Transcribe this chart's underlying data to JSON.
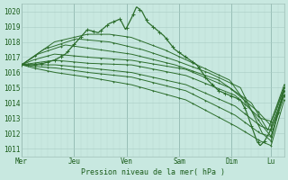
{
  "bg_color": "#c8e8e0",
  "line_color": "#2d6e2d",
  "marker_color": "#2d6e2d",
  "ylabel_text": "Pression niveau de la mer( hPa )",
  "x_labels": [
    "Mer",
    "Jeu",
    "Ven",
    "Sam",
    "Dim",
    "Lu"
  ],
  "ylim": [
    1010.5,
    1020.5
  ],
  "yticks": [
    1011,
    1012,
    1013,
    1014,
    1015,
    1016,
    1017,
    1018,
    1019,
    1020
  ],
  "total_points": 240,
  "day_positions": [
    0,
    48,
    96,
    144,
    192,
    228
  ],
  "lines": [
    {
      "x": [
        0,
        10,
        20,
        30,
        40,
        50,
        60,
        70,
        80,
        90,
        95,
        100,
        105,
        110,
        115,
        120,
        125,
        130,
        140,
        150,
        160,
        170,
        180,
        190,
        200,
        205,
        210,
        215,
        218,
        222,
        226,
        232,
        238,
        240
      ],
      "y": [
        1016.5,
        1016.5,
        1016.6,
        1016.8,
        1017.2,
        1018.0,
        1018.8,
        1018.6,
        1019.2,
        1019.5,
        1018.8,
        1019.5,
        1020.3,
        1020.0,
        1019.3,
        1019.0,
        1018.7,
        1018.4,
        1017.5,
        1017.0,
        1016.5,
        1015.5,
        1014.8,
        1014.5,
        1014.2,
        1013.5,
        1012.5,
        1011.5,
        1011.2,
        1011.5,
        1012.0,
        1013.0,
        1014.2,
        1014.5
      ],
      "main": true
    },
    {
      "x": [
        0,
        30,
        60,
        80,
        100,
        130,
        160,
        190,
        220,
        228,
        240
      ],
      "y": [
        1016.5,
        1018.0,
        1018.5,
        1018.5,
        1018.3,
        1017.5,
        1016.5,
        1015.5,
        1012.5,
        1011.8,
        1014.8
      ]
    },
    {
      "x": [
        0,
        20,
        50,
        80,
        110,
        140,
        170,
        200,
        220,
        228,
        240
      ],
      "y": [
        1016.5,
        1017.5,
        1018.2,
        1018.0,
        1017.5,
        1016.8,
        1016.0,
        1015.0,
        1012.0,
        1011.5,
        1015.0
      ]
    },
    {
      "x": [
        0,
        15,
        40,
        70,
        100,
        140,
        180,
        210,
        225,
        240
      ],
      "y": [
        1016.5,
        1017.2,
        1017.8,
        1017.5,
        1017.2,
        1016.5,
        1015.5,
        1014.0,
        1012.2,
        1015.2
      ]
    },
    {
      "x": [
        0,
        10,
        30,
        60,
        100,
        150,
        190,
        215,
        228,
        240
      ],
      "y": [
        1016.5,
        1016.8,
        1017.2,
        1017.0,
        1016.8,
        1016.2,
        1015.0,
        1013.5,
        1012.5,
        1015.0
      ]
    },
    {
      "x": [
        0,
        10,
        30,
        60,
        100,
        150,
        195,
        218,
        228,
        240
      ],
      "y": [
        1016.5,
        1016.6,
        1016.8,
        1016.6,
        1016.5,
        1015.8,
        1014.5,
        1013.0,
        1012.8,
        1015.0
      ]
    },
    {
      "x": [
        0,
        10,
        30,
        60,
        100,
        150,
        195,
        218,
        228,
        240
      ],
      "y": [
        1016.5,
        1016.5,
        1016.5,
        1016.3,
        1016.0,
        1015.2,
        1013.8,
        1012.5,
        1012.2,
        1014.8
      ]
    },
    {
      "x": [
        0,
        10,
        30,
        60,
        100,
        150,
        195,
        218,
        228,
        240
      ],
      "y": [
        1016.5,
        1016.4,
        1016.3,
        1016.0,
        1015.7,
        1014.8,
        1013.2,
        1012.0,
        1011.8,
        1014.5
      ]
    },
    {
      "x": [
        0,
        10,
        30,
        60,
        100,
        150,
        195,
        218,
        228,
        240
      ],
      "y": [
        1016.5,
        1016.3,
        1016.0,
        1015.7,
        1015.2,
        1014.2,
        1012.5,
        1011.5,
        1011.2,
        1014.2
      ]
    }
  ]
}
